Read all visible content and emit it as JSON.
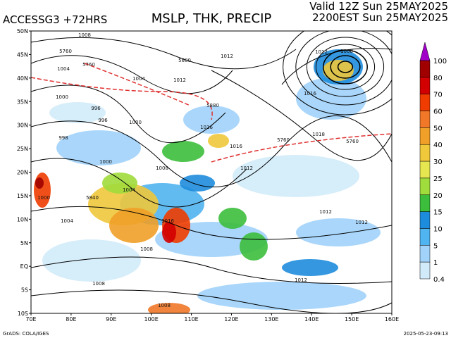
{
  "header": {
    "model": "ACCESSG3 +72HRS",
    "title": "MSLP, THK, PRECIP",
    "valid": "Valid 12Z Sun 25MAY2025",
    "local": "2200EST Sun 25MAY2025"
  },
  "map": {
    "lat_labels": [
      "50N",
      "45N",
      "40N",
      "35N",
      "30N",
      "25N",
      "20N",
      "15N",
      "10N",
      "5N",
      "EQ",
      "5S",
      "10S"
    ],
    "lon_labels": [
      "70E",
      "80E",
      "90E",
      "100E",
      "110E",
      "120E",
      "130E",
      "140E",
      "150E",
      "160E"
    ],
    "contour_labels": [
      "1008",
      "1004",
      "5760",
      "5760",
      "1012",
      "5680",
      "1004",
      "1012",
      "1000",
      "996",
      "1000",
      "996",
      "998",
      "1016",
      "1016",
      "5760",
      "1012",
      "1000",
      "1004",
      "1008",
      "1000",
      "1004",
      "1016",
      "1012",
      "1012",
      "1008",
      "1008",
      "1012",
      "1008",
      "1012",
      "1008",
      "1018",
      "5760",
      "1016",
      "5880",
      "5840"
    ]
  },
  "legend": {
    "labels": [
      100,
      80,
      70,
      60,
      50,
      40,
      30,
      25,
      20,
      15,
      10,
      5,
      1,
      0.4
    ],
    "colors": [
      "#a000c8",
      "#a00000",
      "#d20000",
      "#f03c00",
      "#f07828",
      "#f0a028",
      "#f0c83c",
      "#e6e650",
      "#a0dc3c",
      "#3cbe3c",
      "#1e8cdc",
      "#50b4f0",
      "#a0d2fa",
      "#d2ebfa"
    ]
  },
  "footer": {
    "credit": "GrADS: COLA/IGES",
    "timestamp": "2025-05-23-09:13"
  }
}
